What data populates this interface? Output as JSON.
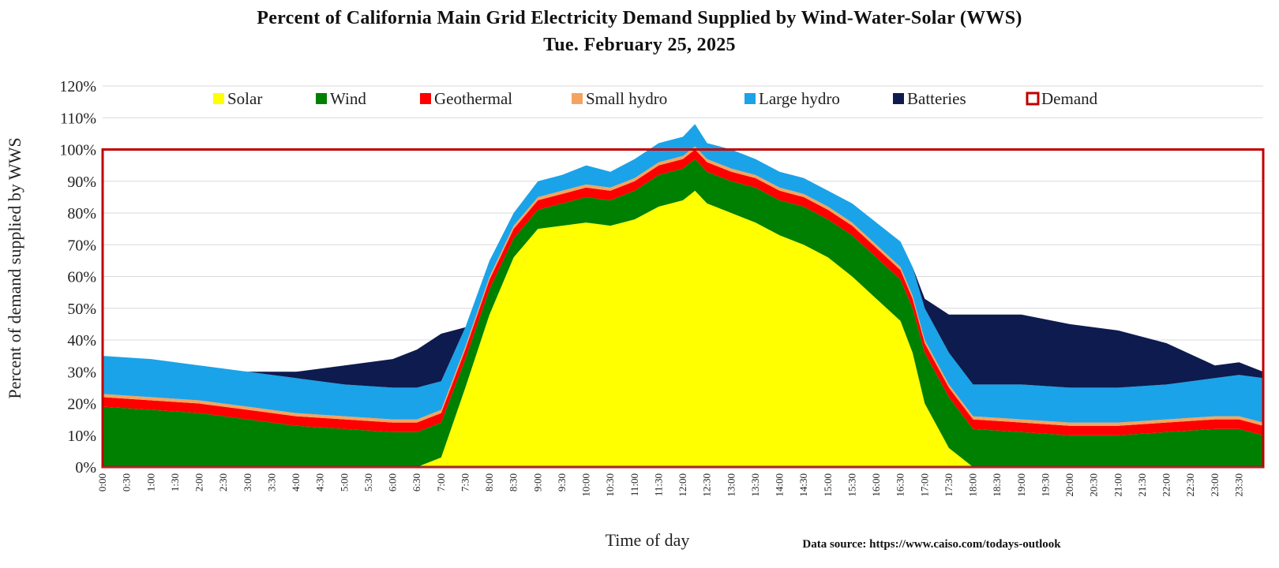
{
  "chart_data": {
    "type": "area",
    "title": "Percent of California Main Grid Electricity Demand  Supplied by Wind-Water-Solar (WWS)",
    "subtitle": "Tue. February 25, 2025",
    "xlabel": "Time of day",
    "ylabel": "Percent of demand supplied by WWS",
    "ylim": [
      0,
      120
    ],
    "yticks": [
      "0%",
      "10%",
      "20%",
      "30%",
      "40%",
      "50%",
      "60%",
      "70%",
      "80%",
      "90%",
      "100%",
      "110%",
      "120%"
    ],
    "xticks": [
      "0:00",
      "0:30",
      "1:00",
      "1:30",
      "2:00",
      "2:30",
      "3:00",
      "3:30",
      "4:00",
      "4:30",
      "5:00",
      "5:30",
      "6:00",
      "6:30",
      "7:00",
      "7:30",
      "8:00",
      "8:30",
      "9:00",
      "9:30",
      "10:00",
      "10:30",
      "11:00",
      "11:30",
      "12:00",
      "12:30",
      "13:00",
      "13:30",
      "14:00",
      "14:30",
      "15:00",
      "15:30",
      "16:00",
      "16:30",
      "17:00",
      "17:30",
      "18:00",
      "18:30",
      "19:00",
      "19:30",
      "20:00",
      "20:30",
      "21:00",
      "21:30",
      "22:00",
      "22:30",
      "23:00",
      "23:30"
    ],
    "hours": [
      0,
      1,
      2,
      3,
      4,
      5,
      6,
      6.5,
      7,
      7.5,
      8,
      8.5,
      9,
      9.5,
      10,
      10.5,
      11,
      11.5,
      12,
      12.25,
      12.5,
      13,
      13.5,
      14,
      14.5,
      15,
      15.5,
      16,
      16.5,
      16.75,
      17,
      17.5,
      18,
      19,
      20,
      21,
      22,
      23,
      23.5,
      24
    ],
    "series": [
      {
        "name": "Solar",
        "color": "#ffff00",
        "values": [
          0,
          0,
          0,
          0,
          0,
          0,
          0,
          0,
          3,
          25,
          48,
          66,
          75,
          76,
          77,
          76,
          78,
          82,
          84,
          87,
          83,
          80,
          77,
          73,
          70,
          66,
          60,
          53,
          46,
          36,
          20,
          6,
          0,
          0,
          0,
          0,
          0,
          0,
          0,
          0
        ]
      },
      {
        "name": "Wind",
        "color": "#008000",
        "values": [
          19,
          18,
          17,
          15,
          13,
          12,
          11,
          11,
          11,
          9,
          8,
          6,
          6,
          7,
          8,
          8,
          9,
          10,
          10,
          10,
          10,
          10,
          11,
          11,
          12,
          12,
          13,
          13,
          13,
          14,
          16,
          16,
          12,
          11,
          10,
          10,
          11,
          12,
          12,
          10
        ]
      },
      {
        "name": "Geothermal",
        "color": "#ff0000",
        "values": [
          3,
          3,
          3,
          3,
          3,
          3,
          3,
          3,
          3,
          3,
          3,
          3,
          3,
          3,
          3,
          3,
          3,
          3,
          3,
          3,
          3,
          3,
          3,
          3,
          3,
          3,
          3,
          3,
          3,
          3,
          3,
          3,
          3,
          3,
          3,
          3,
          3,
          3,
          3,
          3
        ]
      },
      {
        "name": "Small hydro",
        "color": "#f4a460",
        "values": [
          1,
          1,
          1,
          1,
          1,
          1,
          1,
          1,
          1,
          1,
          1,
          1,
          1,
          1,
          1,
          1,
          1,
          1,
          1,
          1,
          1,
          1,
          1,
          1,
          1,
          1,
          1,
          1,
          1,
          1,
          1,
          1,
          1,
          1,
          1,
          1,
          1,
          1,
          1,
          1
        ]
      },
      {
        "name": "Large hydro",
        "color": "#1aa3e8",
        "values": [
          12,
          12,
          11,
          11,
          11,
          10,
          10,
          10,
          9,
          6,
          5,
          4,
          5,
          5,
          6,
          5,
          6,
          6,
          6,
          7,
          5,
          6,
          5,
          5,
          5,
          5,
          6,
          7,
          8,
          9,
          10,
          10,
          10,
          11,
          11,
          11,
          11,
          12,
          13,
          14
        ]
      },
      {
        "name": "Batteries",
        "color": "#0d1b4f",
        "values": [
          0,
          0,
          0,
          0,
          2,
          6,
          9,
          12,
          15,
          0,
          0,
          0,
          0,
          0,
          0,
          0,
          0,
          0,
          0,
          0,
          0,
          0,
          0,
          0,
          0,
          0,
          0,
          0,
          0,
          0,
          3,
          12,
          22,
          22,
          20,
          18,
          13,
          4,
          4,
          2
        ]
      }
    ],
    "demand": {
      "name": "Demand",
      "value": 100,
      "color": "#c00000"
    },
    "source": "Data source: https://www.caiso.com/todays-outlook"
  }
}
